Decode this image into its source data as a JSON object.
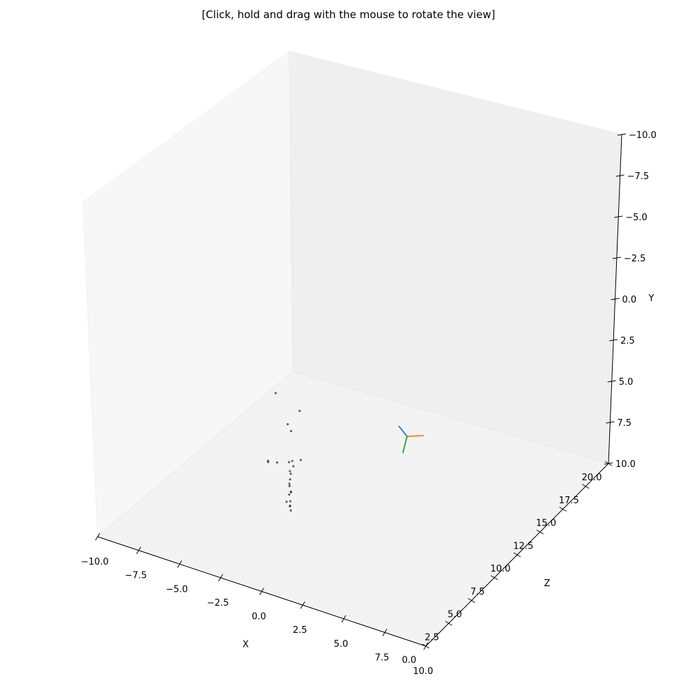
{
  "title": "[Click, hold and drag with the mouse to rotate the view]",
  "chart_data": {
    "type": "scatter",
    "title": "",
    "xlabel": "X",
    "ylabel": "Y",
    "zlabel": "Z",
    "xlim": [
      -10,
      10
    ],
    "ylim": [
      -10,
      10
    ],
    "zlim": [
      0,
      20
    ],
    "y_inverted": true,
    "grid": false,
    "x_ticks": [
      "−10.0",
      "−7.5",
      "−5.0",
      "−2.5",
      "0.0",
      "2.5",
      "5.0",
      "7.5",
      "10.0"
    ],
    "y_ticks": [
      "−10.0",
      "−7.5",
      "−5.0",
      "−2.5",
      "0.0",
      "2.5",
      "5.0",
      "7.5",
      "10.0"
    ],
    "z_ticks": [
      "0.0",
      "2.5",
      "5.0",
      "7.5",
      "10.0",
      "12.5",
      "15.0",
      "17.5",
      "20.0"
    ],
    "points_color": "#333333",
    "points": [
      {
        "x": -2.0,
        "y": 1.5,
        "z": 5.0
      },
      {
        "x": 0.0,
        "y": 1.5,
        "z": 4.0
      },
      {
        "x": -1.0,
        "y": 2.8,
        "z": 4.5
      },
      {
        "x": -1.2,
        "y": 3.6,
        "z": 5.2
      },
      {
        "x": 0.3,
        "y": 3.7,
        "z": 2.7
      },
      {
        "x": -0.5,
        "y": 5.0,
        "z": 5.0
      },
      {
        "x": -1.1,
        "y": 5.2,
        "z": 4.8
      },
      {
        "x": -1.7,
        "y": 5.3,
        "z": 4.6
      },
      {
        "x": -2.2,
        "y": 5.3,
        "z": 4.5
      },
      {
        "x": -2.3,
        "y": 5.5,
        "z": 4.7
      },
      {
        "x": -0.6,
        "y": 5.1,
        "z": 4.4
      },
      {
        "x": 0.1,
        "y": 4.4,
        "z": 2.8
      },
      {
        "x": 0.1,
        "y": 4.6,
        "z": 2.9
      },
      {
        "x": 0.0,
        "y": 5.0,
        "z": 3.0
      },
      {
        "x": -0.2,
        "y": 5.6,
        "z": 3.3
      },
      {
        "x": 0.0,
        "y": 5.8,
        "z": 3.1
      },
      {
        "x": -0.5,
        "y": 5.8,
        "z": 3.8
      },
      {
        "x": -0.3,
        "y": 6.1,
        "z": 3.6
      },
      {
        "x": -0.4,
        "y": 6.3,
        "z": 3.6
      },
      {
        "x": -0.1,
        "y": 6.4,
        "z": 3.2
      },
      {
        "x": -0.5,
        "y": 6.7,
        "z": 3.5
      },
      {
        "x": -0.3,
        "y": 6.9,
        "z": 3.5
      },
      {
        "x": -0.4,
        "y": 7.0,
        "z": 3.7
      },
      {
        "x": -0.3,
        "y": 7.2,
        "z": 3.6
      }
    ],
    "origin_axes": [
      {
        "name": "x-axis",
        "color": "#ff7f0e"
      },
      {
        "name": "y-axis",
        "color": "#2ca02c"
      },
      {
        "name": "z-axis",
        "color": "#1f77b4"
      }
    ]
  }
}
